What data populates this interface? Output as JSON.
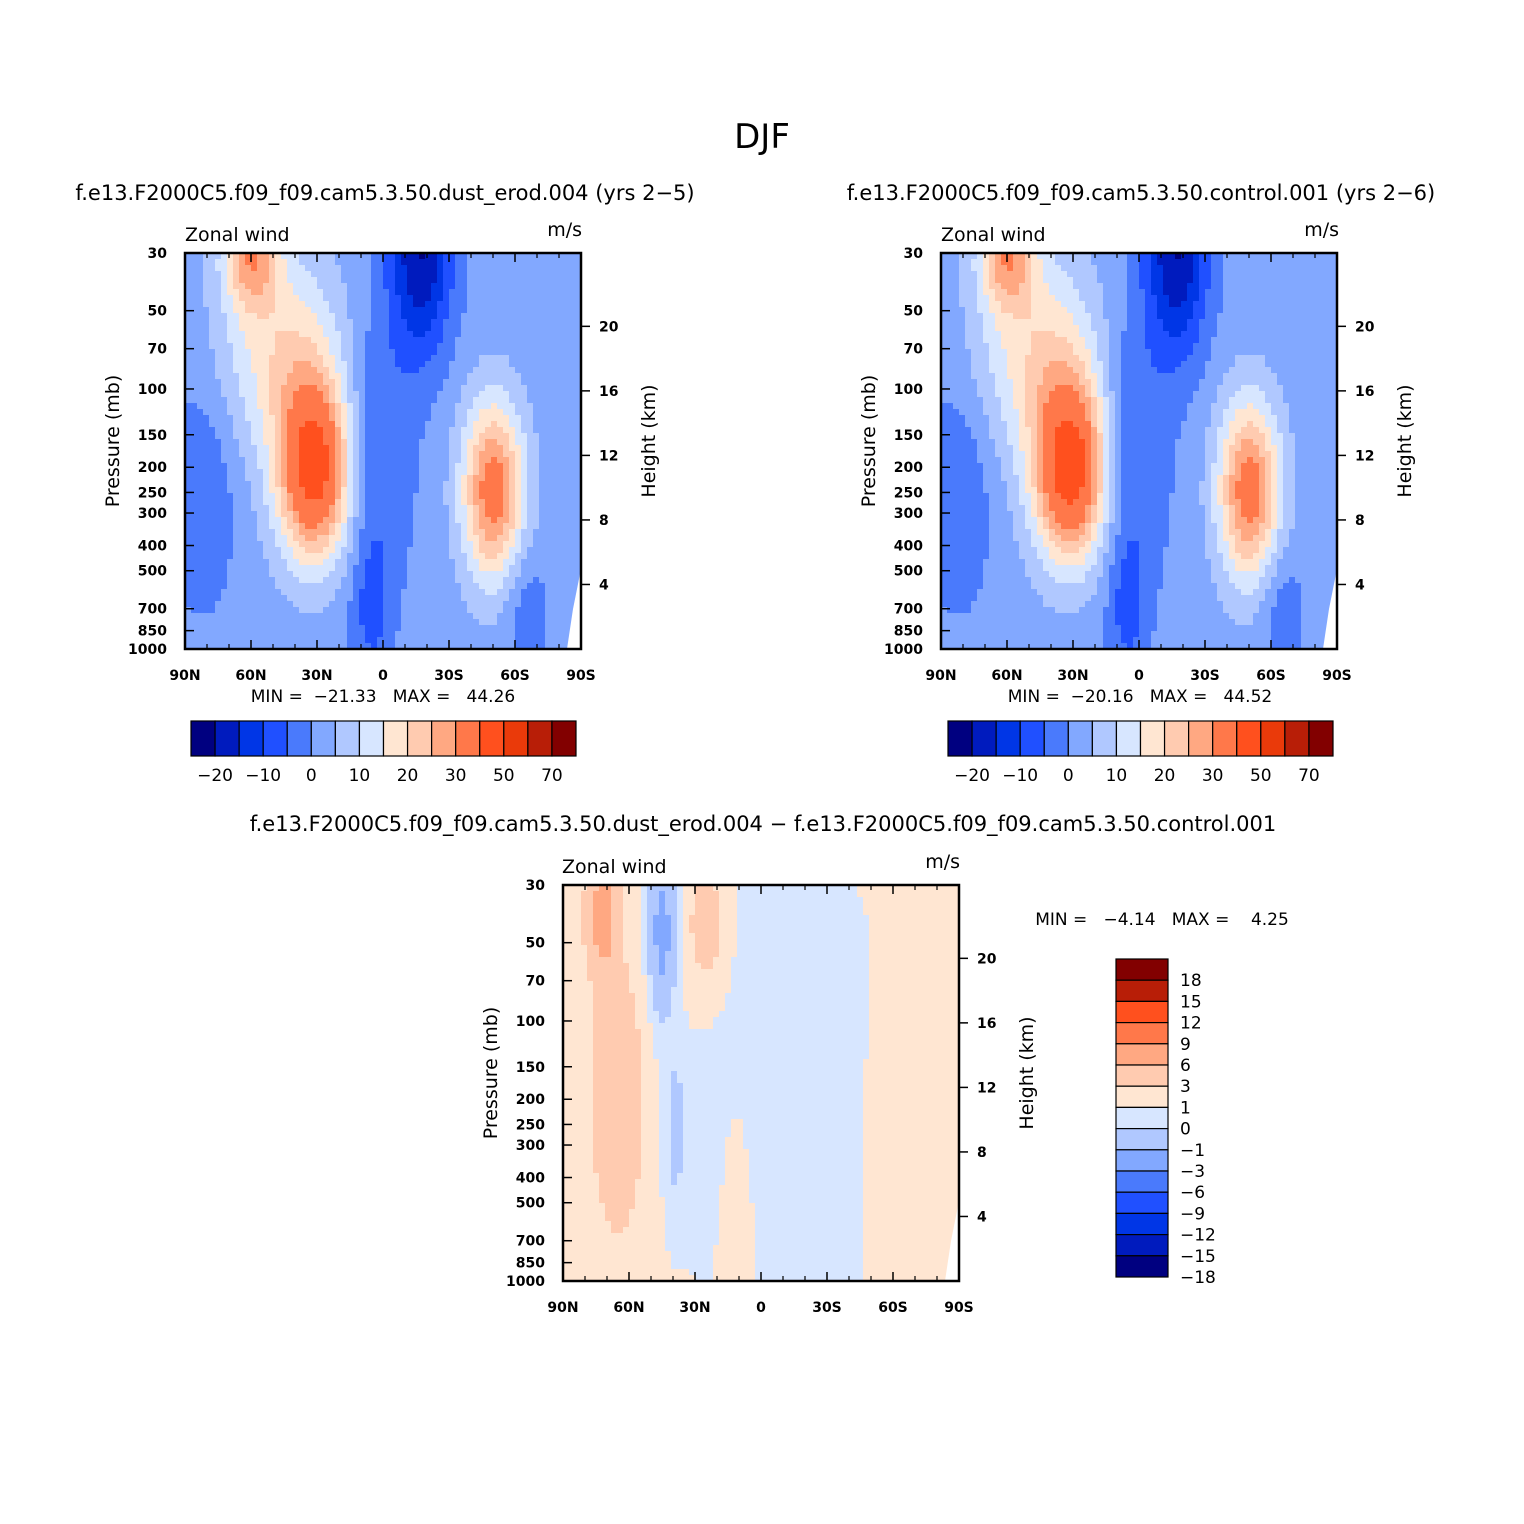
{
  "title": "DJF",
  "colors": {
    "main": [
      "#000080",
      "#001bbe",
      "#0036e6",
      "#2050ff",
      "#4a7afc",
      "#82a8ff",
      "#b0c8ff",
      "#d7e6ff",
      "#ffe6d2",
      "#ffcbb0",
      "#ffa882",
      "#ff784a",
      "#ff501e",
      "#ea3a0a",
      "#b81e07",
      "#820000"
    ],
    "diff": [
      "#000080",
      "#001bbe",
      "#0036e6",
      "#2050ff",
      "#4a7afc",
      "#82a8ff",
      "#b0c8ff",
      "#d7e6ff",
      "#ffe6d2",
      "#ffcbb0",
      "#ffa882",
      "#ff784a",
      "#ff501e",
      "#b81e07",
      "#820000"
    ]
  },
  "panels": [
    {
      "case": "f.e13.F2000C5.f09_f09.cam5.3.50.dust_erod.004 (yrs 2−5)",
      "left_label": "Zonal wind",
      "right_label": "m/s",
      "min_text": "MIN =  −21.33   MAX =   44.26",
      "colorbar": {
        "labels": [
          "−20",
          "−10",
          "0",
          "10",
          "20",
          "30",
          "50",
          "70"
        ]
      }
    },
    {
      "case": "f.e13.F2000C5.f09_f09.cam5.3.50.control.001 (yrs 2−6)",
      "left_label": "Zonal wind",
      "right_label": "m/s",
      "min_text": "MIN =  −20.16   MAX =   44.52",
      "colorbar": {
        "labels": [
          "−20",
          "−10",
          "0",
          "10",
          "20",
          "30",
          "50",
          "70"
        ]
      }
    },
    {
      "case": "f.e13.F2000C5.f09_f09.cam5.3.50.dust_erod.004 − f.e13.F2000C5.f09_f09.cam5.3.50.control.001",
      "left_label": "Zonal wind",
      "right_label": "m/s",
      "min_text": "MIN =   −4.14   MAX =    4.25",
      "colorbar": {
        "labels": [
          "18",
          "15",
          "12",
          "9",
          "6",
          "3",
          "1",
          "0",
          "−1",
          "−3",
          "−6",
          "−9",
          "−12",
          "−15",
          "−18"
        ]
      }
    }
  ],
  "axes": {
    "ylabel_left": "Pressure (mb)",
    "ylabel_right": "Height (km)",
    "x_ticks": [
      "90N",
      "60N",
      "30N",
      "0",
      "30S",
      "60S",
      "90S"
    ],
    "p_ticks": [
      "30",
      "50",
      "70",
      "100",
      "150",
      "200",
      "250",
      "300",
      "400",
      "500",
      "700",
      "850",
      "1000"
    ],
    "h_ticks": [
      "20",
      "16",
      "12",
      "8",
      "4"
    ]
  },
  "chart_data": [
    {
      "type": "heatmap",
      "variable": "Zonal wind",
      "units": "m/s",
      "x": [
        "90N",
        "60N",
        "30N",
        "0",
        "30S",
        "60S",
        "90S"
      ],
      "y_pressure_mb": [
        30,
        50,
        70,
        100,
        150,
        200,
        250,
        300,
        400,
        500,
        700,
        850,
        1000
      ],
      "y_height_km": [
        20,
        16,
        12,
        8,
        4
      ],
      "min": -21.33,
      "max": 44.26,
      "features": [
        {
          "lat": 31,
          "p_mb": 200,
          "u": 44
        },
        {
          "lat": -50,
          "p_mb": 220,
          "u": 35
        },
        {
          "lat": 60,
          "p_mb": 30,
          "u": 25
        },
        {
          "lat": -18,
          "p_mb": 30,
          "u": -21
        }
      ],
      "levels": [
        -25,
        -20,
        -15,
        -10,
        -5,
        0,
        5,
        10,
        15,
        20,
        25,
        30,
        40,
        50,
        60,
        70,
        80
      ]
    },
    {
      "type": "heatmap",
      "variable": "Zonal wind",
      "units": "m/s",
      "x": [
        "90N",
        "60N",
        "30N",
        "0",
        "30S",
        "60S",
        "90S"
      ],
      "y_pressure_mb": [
        30,
        50,
        70,
        100,
        150,
        200,
        250,
        300,
        400,
        500,
        700,
        850,
        1000
      ],
      "y_height_km": [
        20,
        16,
        12,
        8,
        4
      ],
      "min": -20.16,
      "max": 44.52,
      "features": [
        {
          "lat": 31,
          "p_mb": 200,
          "u": 44.5
        },
        {
          "lat": -50,
          "p_mb": 220,
          "u": 35
        },
        {
          "lat": 60,
          "p_mb": 30,
          "u": 26
        },
        {
          "lat": -18,
          "p_mb": 30,
          "u": -20
        }
      ],
      "levels": [
        -25,
        -20,
        -15,
        -10,
        -5,
        0,
        5,
        10,
        15,
        20,
        25,
        30,
        40,
        50,
        60,
        70,
        80
      ]
    },
    {
      "type": "heatmap",
      "variable": "Zonal wind (difference)",
      "units": "m/s",
      "x": [
        "90N",
        "60N",
        "30N",
        "0",
        "30S",
        "60S",
        "90S"
      ],
      "y_pressure_mb": [
        30,
        50,
        70,
        100,
        150,
        200,
        250,
        300,
        400,
        500,
        700,
        850,
        1000
      ],
      "y_height_km": [
        20,
        16,
        12,
        8,
        4
      ],
      "min": -4.14,
      "max": 4.25,
      "features": [
        {
          "lat": 70,
          "p_mb": 45,
          "u": 4.2
        },
        {
          "lat": 45,
          "p_mb": 60,
          "u": -4.1
        },
        {
          "lat": 65,
          "p_mb": 400,
          "u": 2.5
        },
        {
          "lat": 38,
          "p_mb": 300,
          "u": -2
        }
      ],
      "levels": [
        -21,
        -18,
        -15,
        -12,
        -9,
        -6,
        -3,
        -1,
        0,
        1,
        3,
        6,
        9,
        12,
        15,
        18,
        21
      ]
    }
  ]
}
